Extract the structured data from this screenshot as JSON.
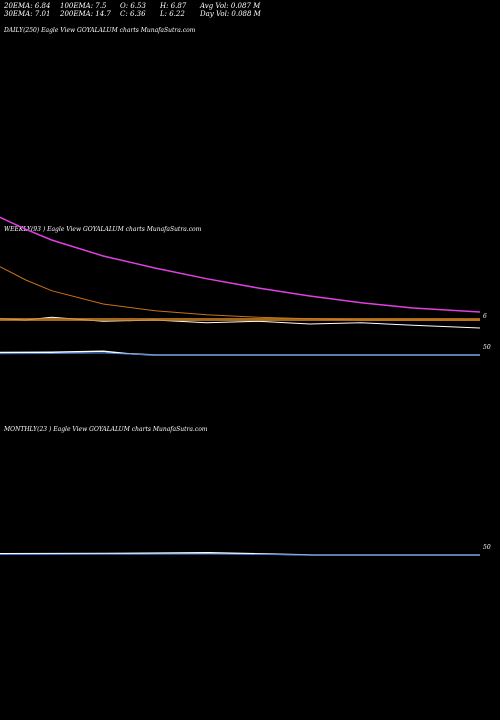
{
  "stats": {
    "ema20": "20EMA: 6.84",
    "ema100": "100EMA: 7.5",
    "open": "O: 6.53",
    "high": "H: 6.87",
    "avg_vol": "Avg Vol: 0.087 M",
    "ema30": "30EMA: 7.01",
    "ema200": "200EMA: 14.7",
    "close": "C: 6.36",
    "low": "L: 6.22",
    "day_vol": "Day Vol: 0.088  M"
  },
  "panels": {
    "daily_title": "DAILY(250) Eagle   View  GOYALALUM charts MunafaSutra.com",
    "weekly_title": "WEEKLY(93                              ) Eagle   View  GOYALALUM charts MunafaSutra.com",
    "monthly_title": "MONTHLY(23                             ) Eagle   View  GOYALALUM charts MunafaSutra.com"
  },
  "colors": {
    "background": "#000000",
    "ema_magenta": "#e040e0",
    "ema_orange": "#c8721a",
    "price_white": "#ffffff",
    "price_blue": "#3a7bd5",
    "volume_orange": "#d08020"
  },
  "chart_data": [
    {
      "type": "line",
      "name": "weekly-price-chart",
      "x": [
        0,
        5,
        10,
        20,
        30,
        40,
        50,
        60,
        70,
        80,
        93
      ],
      "series": [
        {
          "color": "#e040e0",
          "values": [
            14.7,
            13.8,
            13.0,
            11.8,
            10.9,
            10.1,
            9.4,
            8.8,
            8.3,
            7.9,
            7.6
          ]
        },
        {
          "color": "#c8721a",
          "values": [
            11.0,
            10.0,
            9.2,
            8.2,
            7.7,
            7.4,
            7.2,
            7.1,
            7.0,
            7.0,
            7.0
          ]
        },
        {
          "color": "#ffffff",
          "values": [
            7.1,
            7.0,
            7.2,
            6.9,
            7.0,
            6.8,
            6.9,
            6.7,
            6.8,
            6.6,
            6.4
          ]
        }
      ],
      "yticks": [
        "6"
      ]
    },
    {
      "type": "line",
      "name": "weekly-indicator",
      "x": [
        0,
        10,
        20,
        25,
        30,
        93
      ],
      "series": [
        {
          "color": "#ffffff",
          "values": [
            10,
            11,
            15,
            5,
            0,
            0
          ]
        },
        {
          "color": "#3a7bd5",
          "values": [
            5,
            6,
            8,
            4,
            0,
            0
          ]
        }
      ],
      "yticks": [
        "50"
      ]
    },
    {
      "type": "line",
      "name": "monthly-indicator",
      "x": [
        0,
        5,
        10,
        15,
        20,
        23
      ],
      "series": [
        {
          "color": "#ffffff",
          "values": [
            5,
            6,
            9,
            0,
            0,
            0
          ]
        },
        {
          "color": "#3a7bd5",
          "values": [
            2,
            3,
            4,
            0,
            0,
            0
          ]
        }
      ],
      "yticks": [
        "50"
      ]
    }
  ]
}
